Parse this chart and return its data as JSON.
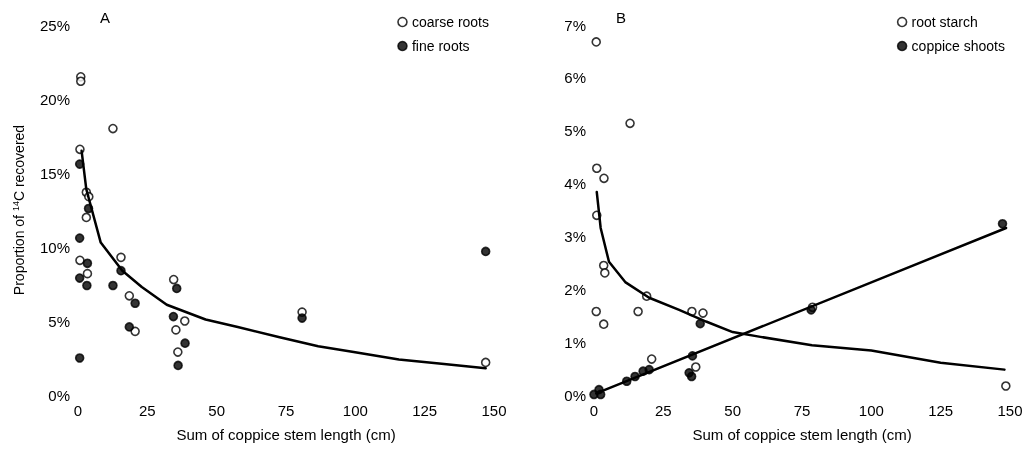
{
  "chart_data": [
    {
      "type": "scatter",
      "annotations": [
        "A"
      ],
      "xlabel": "Sum of coppice stem length (cm)",
      "ylabel": "Proportion of $^{14}$C recovered",
      "xlim": [
        0,
        150
      ],
      "xticks": [
        0,
        25,
        50,
        75,
        100,
        125,
        150
      ],
      "ylim": [
        0,
        25
      ],
      "yticks": [
        {
          "value": 0,
          "label": "0%"
        },
        {
          "value": 5,
          "label": "5%"
        },
        {
          "value": 10,
          "label": "10%"
        },
        {
          "value": 15,
          "label": "15%"
        },
        {
          "value": 20,
          "label": "20%"
        },
        {
          "value": 25,
          "label": "25%"
        }
      ],
      "grid": false,
      "legend": "top right",
      "series": [
        {
          "name": "coarse roots",
          "color": "#ffffff",
          "marker": "circle",
          "x": [
            1,
            1,
            12.6,
            0.7,
            3,
            3.9,
            3,
            0.7,
            3.4,
            15.5,
            18.5,
            20.6,
            34.5,
            35.3,
            38.5,
            36,
            80.8,
            147
          ],
          "values": [
            21.5,
            21.2,
            18,
            16.6,
            13.7,
            13.4,
            12,
            9.1,
            8.2,
            9.3,
            6.7,
            4.3,
            7.8,
            4.4,
            5,
            2.9,
            5.6,
            2.2
          ]
        },
        {
          "name": "fine roots",
          "color": "#000000",
          "marker": "circle",
          "x": [
            0.6,
            0.6,
            0.6,
            0.6,
            3.4,
            3.2,
            3.8,
            12.6,
            15.5,
            18.5,
            20.6,
            34.4,
            35.6,
            38.6,
            36.1,
            80.8,
            147
          ],
          "values": [
            15.6,
            10.6,
            7.9,
            2.5,
            8.9,
            7.4,
            12.6,
            7.4,
            8.4,
            4.6,
            6.2,
            5.3,
            7.2,
            3.5,
            2,
            5.2,
            9.7
          ]
        },
        {
          "type": "line",
          "color": "#000000",
          "marker": "none",
          "line_style": "solid",
          "x": [
            1.3,
            3,
            8.2,
            16,
            23,
            32,
            46,
            57.6,
            72.7,
            86.6,
            99.4,
            115.7,
            132,
            147
          ],
          "values": [
            16.5,
            13.9,
            10.3,
            8.4,
            7.3,
            6.1,
            5.1,
            4.6,
            3.9,
            3.3,
            2.9,
            2.4,
            2.1,
            1.8
          ]
        }
      ]
    },
    {
      "type": "scatter",
      "annotations": [
        "B"
      ],
      "xlabel": "Sum of coppice stem length (cm)",
      "xlim": [
        0,
        150
      ],
      "xticks": [
        0,
        25,
        50,
        75,
        100,
        125,
        150
      ],
      "ylim": [
        0,
        7
      ],
      "yticks": [
        {
          "value": 0,
          "label": "0%"
        },
        {
          "value": 1,
          "label": "1%"
        },
        {
          "value": 2,
          "label": "2%"
        },
        {
          "value": 3,
          "label": "3%"
        },
        {
          "value": 4,
          "label": "4%"
        },
        {
          "value": 5,
          "label": "5%"
        },
        {
          "value": 6,
          "label": "6%"
        },
        {
          "value": 7,
          "label": "7%"
        }
      ],
      "grid": false,
      "legend": "top right",
      "series": [
        {
          "name": "root starch",
          "color": "#ffffff",
          "marker": "circle",
          "x": [
            0.8,
            13,
            1,
            3.6,
            1,
            3.5,
            3.9,
            0.8,
            3.5,
            15.9,
            19,
            35.3,
            39.3,
            36.7,
            20.8,
            78.8,
            148.5
          ],
          "values": [
            6.68,
            5.14,
            4.29,
            4.1,
            3.4,
            2.45,
            2.31,
            1.58,
            1.34,
            1.58,
            1.87,
            1.58,
            1.55,
            0.53,
            0.68,
            1.66,
            0.17
          ]
        },
        {
          "name": "coppice shoots",
          "color": "#000000",
          "marker": "circle",
          "x": [
            0,
            1.8,
            2.4,
            11.8,
            14.8,
            17.7,
            19.9,
            34.3,
            35.2,
            35.5,
            38.3,
            78.3,
            147.3
          ],
          "values": [
            0.01,
            0.1,
            0.01,
            0.26,
            0.35,
            0.45,
            0.48,
            0.42,
            0.35,
            0.74,
            1.35,
            1.61,
            3.24
          ]
        },
        {
          "type": "line",
          "color": "#000000",
          "marker": "none",
          "line_style": "solid",
          "x": [
            1,
            2.4,
            5.4,
            11.4,
            19.9,
            30.7,
            40.4,
            50,
            60,
            78.6,
            100,
            125,
            148
          ],
          "values": [
            3.84,
            3.16,
            2.52,
            2.13,
            1.84,
            1.61,
            1.39,
            1.19,
            1.1,
            0.94,
            0.84,
            0.61,
            0.48
          ]
        },
        {
          "type": "line",
          "color": "#000000",
          "marker": "none",
          "line_style": "solid",
          "x": [
            0.8,
            148.6
          ],
          "values": [
            0.03,
            3.16
          ]
        }
      ]
    }
  ]
}
